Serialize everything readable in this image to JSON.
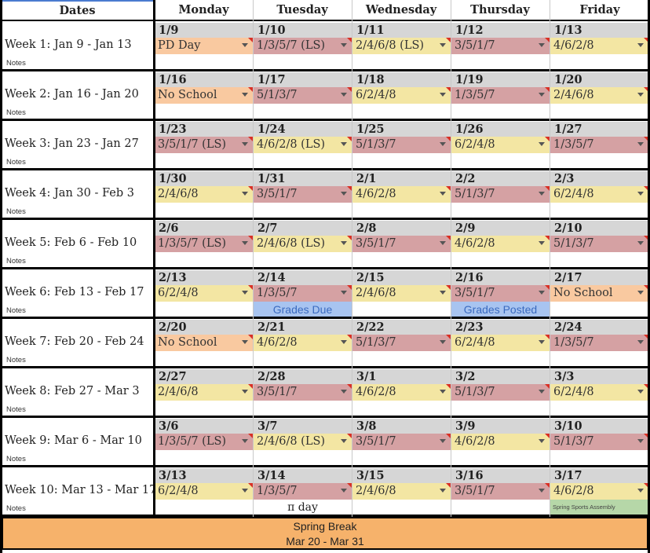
{
  "headers": [
    "Dates",
    "Monday",
    "Tuesday",
    "Wednesday",
    "Thursday",
    "Friday"
  ],
  "notes_label": "Notes",
  "weeks": [
    {
      "label": "Week 1: Jan 9 - Jan 13",
      "dates": [
        "1/9",
        "1/10",
        "1/11",
        "1/12",
        "1/13"
      ],
      "days": [
        {
          "text": "PD Day",
          "color": "orange"
        },
        {
          "text": "1/3/5/7 (LS)",
          "color": "red"
        },
        {
          "text": "2/4/6/8 (LS)",
          "color": "yellow"
        },
        {
          "text": "3/5/1/7",
          "color": "red"
        },
        {
          "text": "4/6/2/8",
          "color": "yellow"
        }
      ],
      "notes": [
        "",
        "",
        "",
        "",
        ""
      ]
    },
    {
      "label": "Week 2: Jan 16 - Jan 20",
      "dates": [
        "1/16",
        "1/17",
        "1/18",
        "1/19",
        "1/20"
      ],
      "days": [
        {
          "text": "No School",
          "color": "orange"
        },
        {
          "text": "5/1/3/7",
          "color": "red"
        },
        {
          "text": "6/2/4/8",
          "color": "yellow"
        },
        {
          "text": "1/3/5/7",
          "color": "red"
        },
        {
          "text": "2/4/6/8",
          "color": "yellow"
        }
      ],
      "notes": [
        "",
        "",
        "",
        "",
        ""
      ]
    },
    {
      "label": "Week 3: Jan 23 - Jan 27",
      "dates": [
        "1/23",
        "1/24",
        "1/25",
        "1/26",
        "1/27"
      ],
      "days": [
        {
          "text": "3/5/1/7 (LS)",
          "color": "red"
        },
        {
          "text": "4/6/2/8 (LS)",
          "color": "yellow"
        },
        {
          "text": "5/1/3/7",
          "color": "red"
        },
        {
          "text": "6/2/4/8",
          "color": "yellow"
        },
        {
          "text": "1/3/5/7",
          "color": "red"
        }
      ],
      "notes": [
        "",
        "",
        "",
        "",
        ""
      ]
    },
    {
      "label": "Week 4: Jan 30 - Feb 3",
      "dates": [
        "1/30",
        "1/31",
        "2/1",
        "2/2",
        "2/3"
      ],
      "days": [
        {
          "text": "2/4/6/8",
          "color": "yellow"
        },
        {
          "text": "3/5/1/7",
          "color": "red"
        },
        {
          "text": "4/6/2/8",
          "color": "yellow"
        },
        {
          "text": "5/1/3/7",
          "color": "red"
        },
        {
          "text": "6/2/4/8",
          "color": "yellow"
        }
      ],
      "notes": [
        "",
        "",
        "",
        "",
        ""
      ]
    },
    {
      "label": "Week 5: Feb 6 - Feb 10",
      "dates": [
        "2/6",
        "2/7",
        "2/8",
        "2/9",
        "2/10"
      ],
      "days": [
        {
          "text": "1/3/5/7 (LS)",
          "color": "red"
        },
        {
          "text": "2/4/6/8 (LS)",
          "color": "yellow"
        },
        {
          "text": "3/5/1/7",
          "color": "red"
        },
        {
          "text": "4/6/2/8",
          "color": "yellow"
        },
        {
          "text": "5/1/3/7",
          "color": "red"
        }
      ],
      "notes": [
        "",
        "",
        "",
        "",
        ""
      ]
    },
    {
      "label": "Week 6: Feb 13 - Feb 17",
      "dates": [
        "2/13",
        "2/14",
        "2/15",
        "2/16",
        "2/17"
      ],
      "days": [
        {
          "text": "6/2/4/8",
          "color": "yellow"
        },
        {
          "text": "1/3/5/7",
          "color": "red"
        },
        {
          "text": "2/4/6/8",
          "color": "yellow"
        },
        {
          "text": "3/5/1/7",
          "color": "red"
        },
        {
          "text": "No School",
          "color": "orange"
        }
      ],
      "notes": [
        "",
        "Grades Due",
        "",
        "Grades Posted",
        ""
      ]
    },
    {
      "label": "Week 7: Feb 20 - Feb 24",
      "dates": [
        "2/20",
        "2/21",
        "2/22",
        "2/23",
        "2/24"
      ],
      "days": [
        {
          "text": "No School",
          "color": "orange"
        },
        {
          "text": "4/6/2/8",
          "color": "yellow"
        },
        {
          "text": "5/1/3/7",
          "color": "red"
        },
        {
          "text": "6/2/4/8",
          "color": "yellow"
        },
        {
          "text": "1/3/5/7",
          "color": "red"
        }
      ],
      "notes": [
        "",
        "",
        "",
        "",
        ""
      ]
    },
    {
      "label": "Week 8: Feb 27 - Mar 3",
      "dates": [
        "2/27",
        "2/28",
        "3/1",
        "3/2",
        "3/3"
      ],
      "days": [
        {
          "text": "2/4/6/8",
          "color": "yellow"
        },
        {
          "text": "3/5/1/7",
          "color": "red"
        },
        {
          "text": "4/6/2/8",
          "color": "yellow"
        },
        {
          "text": "5/1/3/7",
          "color": "red"
        },
        {
          "text": "6/2/4/8",
          "color": "yellow"
        }
      ],
      "notes": [
        "",
        "",
        "",
        "",
        ""
      ]
    },
    {
      "label": "Week 9: Mar 6 - Mar 10",
      "dates": [
        "3/6",
        "3/7",
        "3/8",
        "3/9",
        "3/10"
      ],
      "days": [
        {
          "text": "1/3/5/7 (LS)",
          "color": "red"
        },
        {
          "text": "2/4/6/8 (LS)",
          "color": "yellow"
        },
        {
          "text": "3/5/1/7",
          "color": "red"
        },
        {
          "text": "4/6/2/8",
          "color": "yellow"
        },
        {
          "text": "5/1/3/7",
          "color": "red"
        }
      ],
      "notes": [
        "",
        "",
        "",
        "",
        ""
      ]
    },
    {
      "label": "Week 10: Mar 13 - Mar 17",
      "dates": [
        "3/13",
        "3/14",
        "3/15",
        "3/16",
        "3/17"
      ],
      "days": [
        {
          "text": "6/2/4/8",
          "color": "yellow"
        },
        {
          "text": "1/3/5/7",
          "color": "red"
        },
        {
          "text": "2/4/6/8",
          "color": "yellow"
        },
        {
          "text": "3/5/1/7",
          "color": "red"
        },
        {
          "text": "4/6/2/8",
          "color": "yellow"
        }
      ],
      "notes": [
        "",
        "π day",
        "",
        "",
        "Spring Sports Assembly"
      ]
    }
  ],
  "spring_break": {
    "title": "Spring Break",
    "range": "Mar 20 - Mar 31"
  },
  "colors": {
    "yellow": "#f3e6a3",
    "red": "#d5a1a3",
    "orange": "#f9c9a0",
    "date_band": "#d6d6d6",
    "grades_note": "#a8c4f0",
    "assembly_note": "#b6d7a8",
    "break": "#f6b26b"
  }
}
